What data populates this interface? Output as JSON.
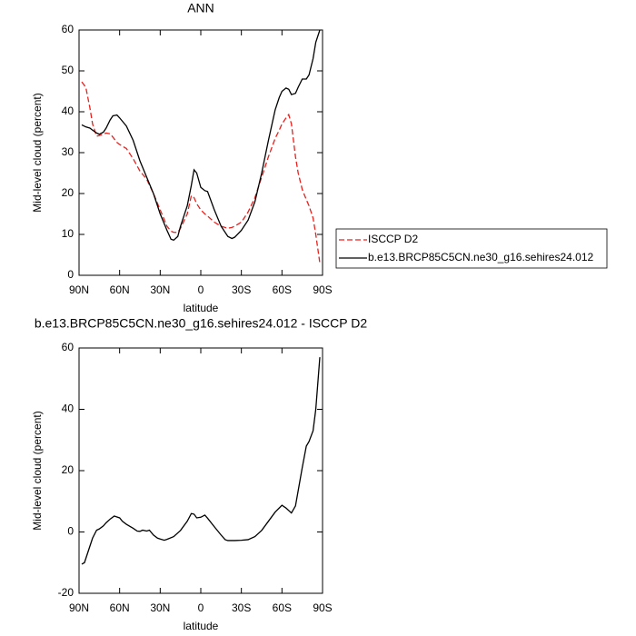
{
  "chart_data": [
    {
      "type": "line",
      "title": "ANN",
      "xlabel": "latitude",
      "ylabel": "Mid-level cloud (percent)",
      "x": [
        88,
        85,
        82,
        80,
        77,
        75,
        72,
        70,
        67,
        65,
        62,
        60,
        55,
        50,
        45,
        40,
        35,
        30,
        25,
        22,
        20,
        17,
        15,
        10,
        7,
        5,
        3,
        0,
        -3,
        -5,
        -10,
        -15,
        -20,
        -23,
        -25,
        -30,
        -35,
        -40,
        -45,
        -50,
        -55,
        -58,
        -60,
        -63,
        -65,
        -67,
        -70,
        -72,
        -75,
        -78,
        -80,
        -83,
        -85,
        -88
      ],
      "series": [
        {
          "name": "ISCCP D2",
          "color": "#e8201c",
          "linestyle": "dashed",
          "values": [
            47.3,
            46,
            41,
            37,
            34,
            34.2,
            34.5,
            34.8,
            34.6,
            33.8,
            32.5,
            32,
            31,
            28.5,
            25.5,
            23.5,
            20,
            16,
            12,
            10.8,
            10.5,
            10.5,
            11.5,
            15,
            19.5,
            19,
            17.5,
            16,
            15,
            14.5,
            13,
            12,
            11.5,
            11.7,
            12,
            13,
            15.5,
            19,
            24,
            29,
            33.5,
            35.5,
            37,
            38.5,
            39.3,
            37,
            29,
            25,
            21,
            18.5,
            17,
            14,
            10,
            3
          ]
        },
        {
          "name": "b.e13.BRCP85C5CN.ne30_g16.sehires24.012",
          "color": "#000000",
          "linestyle": "solid",
          "values": [
            36.8,
            36.3,
            36,
            35.5,
            34.8,
            34.5,
            35,
            36,
            38,
            39,
            39.2,
            38.5,
            36.5,
            33,
            28,
            24,
            20,
            15,
            11,
            8.8,
            8.6,
            9.5,
            12,
            17,
            22,
            25.8,
            25,
            21.5,
            20.7,
            20.5,
            16,
            12,
            9.5,
            9,
            9.3,
            11,
            13.5,
            18,
            25,
            33,
            40.5,
            43.5,
            45,
            45.8,
            45.5,
            44.2,
            44.5,
            46,
            48,
            48,
            49,
            53,
            57,
            60
          ]
        }
      ],
      "xlim": [
        90,
        -90
      ],
      "xticks": [
        {
          "value": 90,
          "label": "90N"
        },
        {
          "value": 60,
          "label": "60N"
        },
        {
          "value": 30,
          "label": "30N"
        },
        0,
        {
          "value": -30,
          "label": "30S"
        },
        {
          "value": -60,
          "label": "60S"
        },
        {
          "value": -90,
          "label": "90S"
        }
      ],
      "ylim": [
        0,
        60
      ],
      "yticks": [
        0,
        10,
        20,
        30,
        40,
        50,
        60
      ],
      "legend": "right"
    },
    {
      "type": "line",
      "title": "b.e13.BRCP85C5CN.ne30_g16.sehires24.012 - ISCCP D2",
      "xlabel": "latitude",
      "ylabel": "Mid-level cloud (percent)",
      "x": [
        88,
        86,
        83,
        80,
        77,
        75,
        72,
        70,
        67,
        64,
        60,
        58,
        55,
        50,
        47,
        45,
        43,
        40,
        38,
        35,
        32,
        30,
        27,
        25,
        20,
        15,
        10,
        7,
        5,
        3,
        0,
        -3,
        -5,
        -10,
        -15,
        -18,
        -20,
        -25,
        -30,
        -35,
        -40,
        -45,
        -50,
        -55,
        -60,
        -63,
        -67,
        -70,
        -73,
        -75,
        -78,
        -80,
        -83,
        -85,
        -88
      ],
      "series": [
        {
          "color": "#000000",
          "linestyle": "solid",
          "values": [
            -10.5,
            -10,
            -6,
            -2,
            0.6,
            1,
            2,
            3,
            4.2,
            5.2,
            4.6,
            3.5,
            2.5,
            1.2,
            0.3,
            0.2,
            0.6,
            0.3,
            0.6,
            -1,
            -2,
            -2.3,
            -2.7,
            -2.4,
            -1.5,
            0.5,
            3.5,
            6,
            5.8,
            4.6,
            4.8,
            5.5,
            4.5,
            1.7,
            -1,
            -2.5,
            -2.8,
            -2.8,
            -2.7,
            -2.5,
            -1.5,
            0.5,
            3.5,
            6.5,
            8.7,
            7.8,
            6.2,
            8.5,
            16,
            21,
            28,
            29.5,
            33,
            40,
            57
          ]
        }
      ],
      "xlim": [
        90,
        -90
      ],
      "xticks": [
        {
          "value": 90,
          "label": "90N"
        },
        {
          "value": 60,
          "label": "60N"
        },
        {
          "value": 30,
          "label": "30N"
        },
        0,
        {
          "value": -30,
          "label": "30S"
        },
        {
          "value": -60,
          "label": "60S"
        },
        {
          "value": -90,
          "label": "90S"
        }
      ],
      "ylim": [
        -20,
        60
      ],
      "yticks": [
        -20,
        0,
        20,
        40,
        60
      ]
    }
  ]
}
